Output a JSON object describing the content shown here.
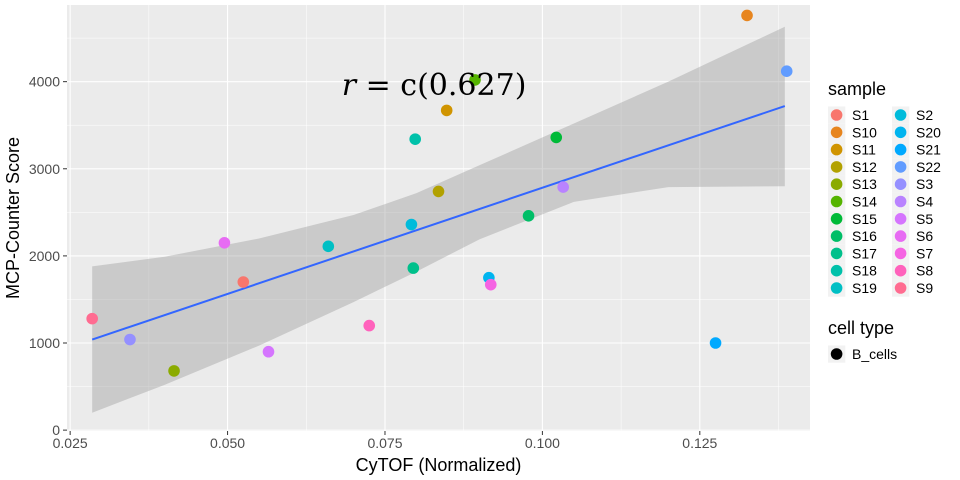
{
  "chart_data": {
    "type": "scatter",
    "title": "",
    "xlabel": "CyTOF (Normalized)",
    "ylabel": "MCP-Counter Score",
    "xlim": [
      0.0245,
      0.1425
    ],
    "ylim": [
      -10,
      4880
    ],
    "x_ticks": [
      0.025,
      0.05,
      0.075,
      0.1,
      0.125
    ],
    "x_tick_labels": [
      "0.025",
      "0.050",
      "0.075",
      "0.100",
      "0.125"
    ],
    "y_ticks": [
      0,
      1000,
      2000,
      3000,
      4000
    ],
    "y_tick_labels": [
      "0",
      "1000",
      "2000",
      "3000",
      "4000"
    ],
    "grid": true,
    "annotation": {
      "r": "r",
      "text": " = c(0.627)",
      "x": 0.0828,
      "y": 3960
    },
    "trend_line": {
      "x": [
        0.0285,
        0.1385
      ],
      "y": [
        1040,
        3720
      ]
    },
    "confidence_band": {
      "x": [
        0.0285,
        0.04,
        0.055,
        0.07,
        0.08,
        0.09,
        0.105,
        0.12,
        0.1385
      ],
      "upper": [
        1880,
        1990,
        2200,
        2470,
        2720,
        3040,
        3520,
        4000,
        4630
      ],
      "lower": [
        200,
        520,
        970,
        1470,
        1820,
        2190,
        2620,
        2790,
        2800
      ]
    },
    "series": [
      {
        "name": "S1",
        "color": "#F8766D",
        "x": 0.0525,
        "y": 1700
      },
      {
        "name": "S10",
        "color": "#E7851E",
        "x": 0.1325,
        "y": 4760
      },
      {
        "name": "S11",
        "color": "#D09400",
        "x": 0.0848,
        "y": 3670
      },
      {
        "name": "S12",
        "color": "#B2A100",
        "x": 0.0835,
        "y": 2740
      },
      {
        "name": "S13",
        "color": "#8BAB00",
        "x": 0.0415,
        "y": 680
      },
      {
        "name": "S14",
        "color": "#55B400",
        "x": 0.0893,
        "y": 4020
      },
      {
        "name": "S15",
        "color": "#00BA38",
        "x": 0.1022,
        "y": 3360
      },
      {
        "name": "S16",
        "color": "#00BE67",
        "x": 0.0978,
        "y": 2460
      },
      {
        "name": "S17",
        "color": "#00C08B",
        "x": 0.0795,
        "y": 1860
      },
      {
        "name": "S18",
        "color": "#00C1AA",
        "x": 0.0798,
        "y": 3340
      },
      {
        "name": "S19",
        "color": "#00BFC4",
        "x": 0.066,
        "y": 2110
      },
      {
        "name": "S2",
        "color": "#00BBDB",
        "x": 0.0792,
        "y": 2360
      },
      {
        "name": "S20",
        "color": "#00B4EF",
        "x": 0.0915,
        "y": 1750
      },
      {
        "name": "S21",
        "color": "#00A9FF",
        "x": 0.1275,
        "y": 1000
      },
      {
        "name": "S22",
        "color": "#619CFF",
        "x": 0.1388,
        "y": 4120
      },
      {
        "name": "S3",
        "color": "#9590FF",
        "x": 0.0345,
        "y": 1040
      },
      {
        "name": "S4",
        "color": "#B983FF",
        "x": 0.1033,
        "y": 2790
      },
      {
        "name": "S5",
        "color": "#D575FE",
        "x": 0.0565,
        "y": 900
      },
      {
        "name": "S6",
        "color": "#E76BF3",
        "x": 0.0495,
        "y": 2150
      },
      {
        "name": "S7",
        "color": "#F564E3",
        "x": 0.0918,
        "y": 1670
      },
      {
        "name": "S8",
        "color": "#FF62BC",
        "x": 0.0725,
        "y": 1200
      },
      {
        "name": "S9",
        "color": "#FF6C91",
        "x": 0.0285,
        "y": 1280
      }
    ],
    "legend": {
      "placement": "right",
      "sample_title": "sample",
      "sample_items_col1": [
        "S1",
        "S10",
        "S11",
        "S12",
        "S13",
        "S14",
        "S15",
        "S16",
        "S17",
        "S18",
        "S19"
      ],
      "sample_items_col2": [
        "S2",
        "S20",
        "S21",
        "S22",
        "S3",
        "S4",
        "S5",
        "S6",
        "S7",
        "S8",
        "S9"
      ],
      "shape_title": "cell type",
      "shape_items": [
        "B_cells"
      ]
    },
    "colors": {
      "panel": "#EBEBEB",
      "grid_major": "#FFFFFF",
      "band": "#999999",
      "trend": "#3366FF"
    }
  }
}
